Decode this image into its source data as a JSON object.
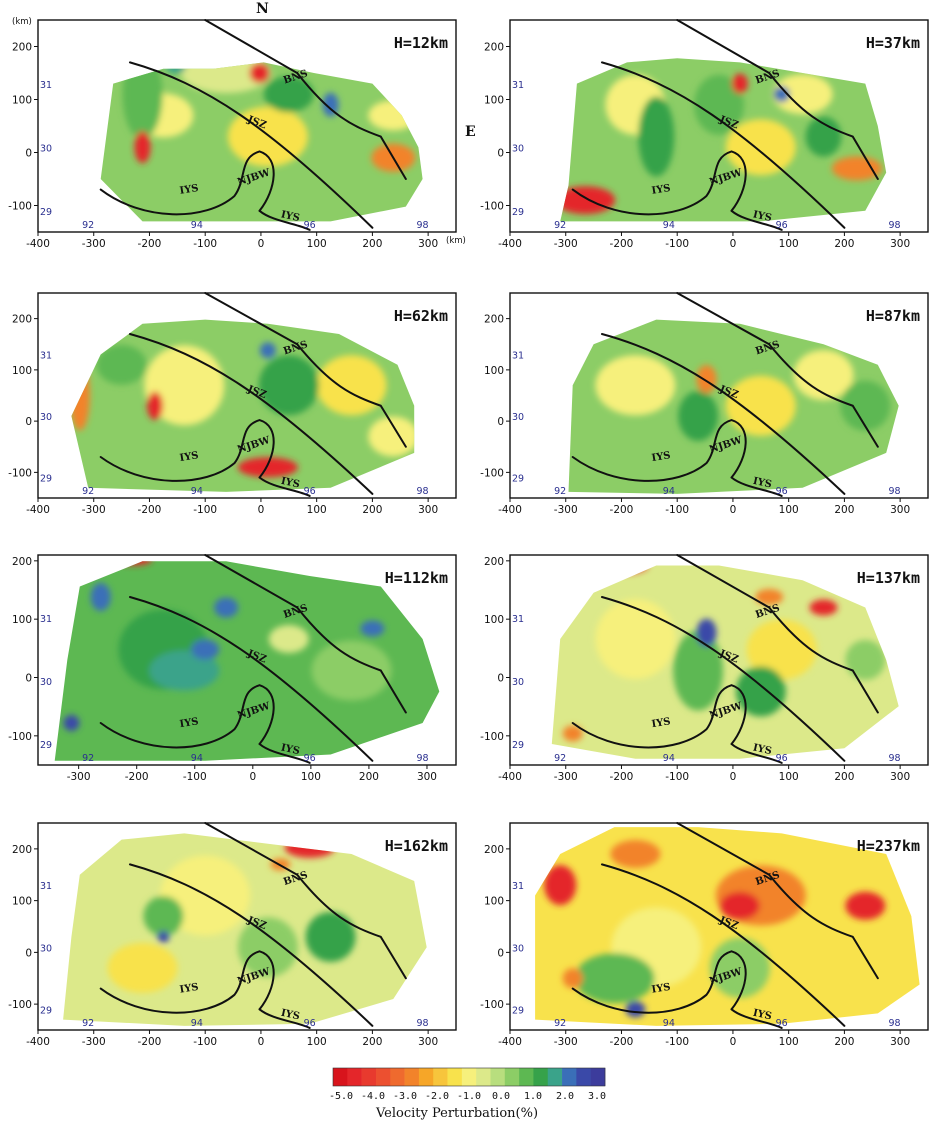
{
  "compass": {
    "north": "N",
    "east": "E"
  },
  "units": {
    "km_left": "(km)",
    "km_bottom": "(km)"
  },
  "colors": {
    "scale": [
      "#d8141c",
      "#e4262a",
      "#e83a2e",
      "#ec5030",
      "#ef6a2e",
      "#f2832a",
      "#f6a628",
      "#f7c53c",
      "#f8e24c",
      "#f6f07c",
      "#dce98a",
      "#b8de7e",
      "#8ccd66",
      "#5db852",
      "#36a24a",
      "#3aa38a",
      "#3a6fb8",
      "#3a49a8",
      "#3c3c9c"
    ],
    "fault": "#111111",
    "lat_label": "#2a2f8f"
  },
  "colorbar": {
    "title": "Velocity Perturbation(%)",
    "tick_labels": [
      "-5.0",
      "-4.0",
      "-3.0",
      "-2.0",
      "-1.0",
      "0.0",
      "1.0",
      "2.0",
      "3.0"
    ]
  },
  "chart_data": [
    {
      "type": "heatmap",
      "title": "H=12km",
      "ylim": [
        -150,
        250
      ],
      "xlim": [
        -400,
        350
      ],
      "xticks": [
        "-400",
        "-300",
        "-200",
        "-100",
        "0",
        "100",
        "200",
        "300"
      ],
      "yticks": [
        "200",
        "100",
        "0",
        "-100"
      ],
      "lat_labels": [
        "31",
        "30",
        "29"
      ],
      "lon_labels": [
        "92",
        "94",
        "96",
        "98"
      ],
      "faults": [
        "BNS",
        "JSZ",
        "IYS",
        "NJBW",
        "IYS"
      ],
      "dominant": "green"
    },
    {
      "type": "heatmap",
      "title": "H=37km",
      "ylim": [
        -150,
        250
      ],
      "xlim": [
        -400,
        350
      ],
      "xticks": [
        "-400",
        "-300",
        "-200",
        "-100",
        "0",
        "100",
        "200",
        "300"
      ],
      "yticks": [
        "200",
        "100",
        "0",
        "-100"
      ],
      "lat_labels": [
        "31",
        "30",
        "29"
      ],
      "lon_labels": [
        "92",
        "94",
        "96",
        "98"
      ],
      "faults": [
        "BNS",
        "JSZ",
        "IYS",
        "NJBW",
        "IYS"
      ],
      "dominant": "green"
    },
    {
      "type": "heatmap",
      "title": "H=62km",
      "ylim": [
        -150,
        250
      ],
      "xlim": [
        -400,
        350
      ],
      "xticks": [
        "-400",
        "-300",
        "-200",
        "-100",
        "0",
        "100",
        "200",
        "300"
      ],
      "yticks": [
        "200",
        "100",
        "0",
        "-100"
      ],
      "lat_labels": [
        "31",
        "30",
        "29"
      ],
      "lon_labels": [
        "92",
        "94",
        "96",
        "98"
      ],
      "faults": [
        "BNS",
        "JSZ",
        "IYS",
        "NJBW",
        "IYS"
      ],
      "dominant": "green"
    },
    {
      "type": "heatmap",
      "title": "H=87km",
      "ylim": [
        -150,
        250
      ],
      "xlim": [
        -400,
        350
      ],
      "xticks": [
        "-400",
        "-300",
        "-200",
        "-100",
        "0",
        "100",
        "200",
        "300"
      ],
      "yticks": [
        "200",
        "100",
        "0",
        "-100"
      ],
      "lat_labels": [
        "31",
        "30",
        "29"
      ],
      "lon_labels": [
        "92",
        "94",
        "96",
        "98"
      ],
      "faults": [
        "BNS",
        "JSZ",
        "IYS",
        "NJBW",
        "IYS"
      ],
      "dominant": "green"
    },
    {
      "type": "heatmap",
      "title": "H=112km",
      "ylim": [
        -150,
        210
      ],
      "xlim": [
        -370,
        350
      ],
      "xticks": [
        "-300",
        "-200",
        "-100",
        "0",
        "100",
        "200",
        "300"
      ],
      "yticks": [
        "200",
        "100",
        "0",
        "-100"
      ],
      "lat_labels": [
        "31",
        "30",
        "29"
      ],
      "lon_labels": [
        "92",
        "94",
        "96",
        "98"
      ],
      "faults": [
        "BNS",
        "JSZ",
        "IYS",
        "NJBW",
        "IYS"
      ],
      "dominant": "deep-green"
    },
    {
      "type": "heatmap",
      "title": "H=137km",
      "ylim": [
        -150,
        210
      ],
      "xlim": [
        -400,
        350
      ],
      "xticks": [
        "-400",
        "-300",
        "-200",
        "-100",
        "0",
        "100",
        "200",
        "300"
      ],
      "yticks": [
        "200",
        "100",
        "0",
        "-100"
      ],
      "lat_labels": [
        "31",
        "30",
        "29"
      ],
      "lon_labels": [
        "92",
        "94",
        "96",
        "98"
      ],
      "faults": [
        "BNS",
        "JSZ",
        "IYS",
        "NJBW",
        "IYS"
      ],
      "dominant": "light-green"
    },
    {
      "type": "heatmap",
      "title": "H=162km",
      "ylim": [
        -150,
        250
      ],
      "xlim": [
        -400,
        350
      ],
      "xticks": [
        "-400",
        "-300",
        "-200",
        "-100",
        "0",
        "100",
        "200",
        "300"
      ],
      "yticks": [
        "200",
        "100",
        "0",
        "-100"
      ],
      "lat_labels": [
        "31",
        "30",
        "29"
      ],
      "lon_labels": [
        "92",
        "94",
        "96",
        "98"
      ],
      "faults": [
        "BNS",
        "JSZ",
        "IYS",
        "NJBW",
        "IYS"
      ],
      "dominant": "light-green"
    },
    {
      "type": "heatmap",
      "title": "H=237km",
      "ylim": [
        -150,
        250
      ],
      "xlim": [
        -400,
        350
      ],
      "xticks": [
        "-400",
        "-300",
        "-200",
        "-100",
        "0",
        "100",
        "200",
        "300"
      ],
      "yticks": [
        "200",
        "100",
        "0",
        "-100"
      ],
      "lat_labels": [
        "31",
        "30",
        "29"
      ],
      "lon_labels": [
        "92",
        "94",
        "96",
        "98"
      ],
      "faults": [
        "BNS",
        "JSZ",
        "IYS",
        "NJBW",
        "IYS"
      ],
      "dominant": "yellow"
    }
  ]
}
